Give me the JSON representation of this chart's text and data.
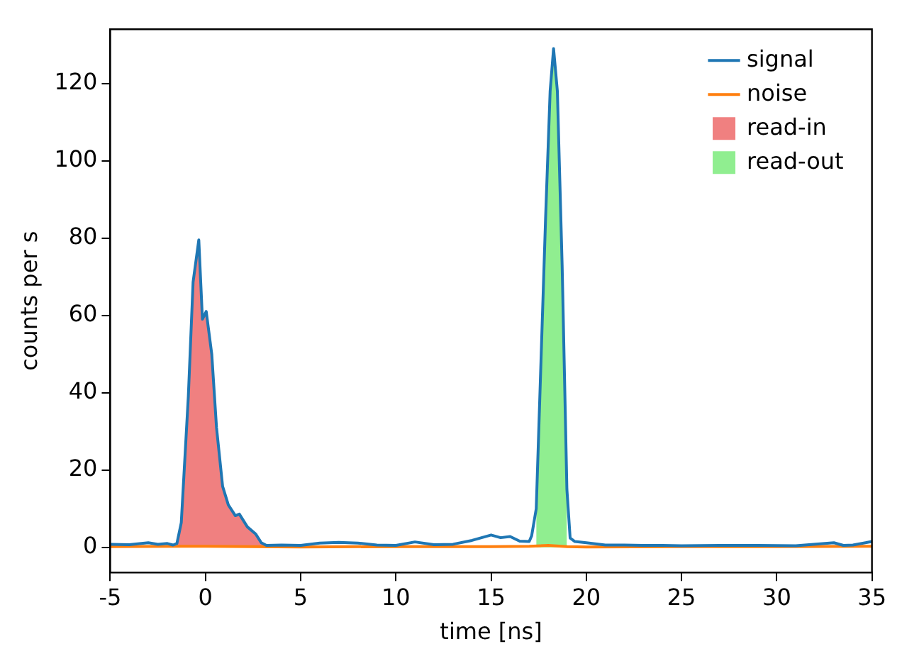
{
  "chart_data": {
    "type": "line",
    "xlabel": "time [ns]",
    "ylabel": "counts per s",
    "series": [
      {
        "name": "signal",
        "color": "#1f77b4",
        "x": [
          -5,
          -4,
          -3,
          -2.5,
          -2,
          -1.7,
          -1.5,
          -1.27,
          -0.9,
          -0.65,
          -0.35,
          -0.16,
          0.04,
          0.33,
          0.58,
          0.9,
          1.2,
          1.57,
          1.78,
          2.2,
          2.63,
          2.93,
          3.2,
          4,
          5,
          6,
          7,
          8,
          9,
          10,
          11,
          12,
          13,
          14,
          15,
          15.5,
          16,
          16.5,
          17,
          17.13,
          17.37,
          17.86,
          18.1,
          18.28,
          18.48,
          18.73,
          18.98,
          19.15,
          19.4,
          20,
          21,
          22,
          23,
          24,
          25,
          27,
          29,
          31,
          33,
          33.5,
          34,
          35
        ],
        "values": [
          0.8,
          0.7,
          1.2,
          0.8,
          1.0,
          0.6,
          1.0,
          6.4,
          39,
          68.6,
          79.5,
          59,
          61,
          50,
          31,
          15.8,
          11,
          8.2,
          8.6,
          5.3,
          3.5,
          1.2,
          0.5,
          0.6,
          0.5,
          1.1,
          1.3,
          1.1,
          0.6,
          0.5,
          1.4,
          0.7,
          0.8,
          1.8,
          3.2,
          2.5,
          2.8,
          1.6,
          1.5,
          3,
          10,
          85,
          118,
          129,
          118,
          73,
          15,
          2.4,
          1.5,
          1.2,
          0.6,
          0.6,
          0.5,
          0.5,
          0.4,
          0.5,
          0.5,
          0.4,
          1.2,
          0.5,
          0.6,
          1.5
        ]
      },
      {
        "name": "noise",
        "color": "#ff7f0e",
        "x": [
          -5,
          0,
          5,
          10,
          15,
          17,
          18,
          19,
          20,
          25,
          30,
          35
        ],
        "values": [
          0.2,
          0.3,
          0.1,
          0.2,
          0.2,
          0.3,
          0.5,
          0.2,
          0.1,
          0.2,
          0.2,
          0.3
        ]
      },
      {
        "name": "read-in",
        "color": "#f08080",
        "type": "area",
        "x": [
          -1.5,
          -1.27,
          -0.9,
          -0.65,
          -0.35,
          -0.16,
          0.04,
          0.33,
          0.58,
          0.9,
          1.2,
          1.57,
          1.78,
          2.2,
          2.63,
          2.93,
          3.2
        ],
        "values": [
          1.0,
          6.4,
          39,
          68.6,
          79.5,
          59,
          61,
          50,
          31,
          15.8,
          11,
          8.2,
          8.6,
          5.3,
          3.5,
          1.2,
          0.5
        ]
      },
      {
        "name": "read-out",
        "color": "#90ee90",
        "type": "area",
        "x": [
          17.37,
          17.86,
          18.1,
          18.28,
          18.48,
          18.73,
          18.98
        ],
        "values": [
          10,
          85,
          118,
          129,
          118,
          73,
          15
        ]
      }
    ],
    "xlim": [
      -5,
      35
    ],
    "xticks": [
      -5,
      0,
      5,
      10,
      15,
      20,
      25,
      30,
      35
    ],
    "ylim": [
      -6.5,
      134
    ],
    "yticks": [
      0,
      20,
      40,
      60,
      80,
      100,
      120
    ],
    "grid": false,
    "legend": "top right"
  }
}
